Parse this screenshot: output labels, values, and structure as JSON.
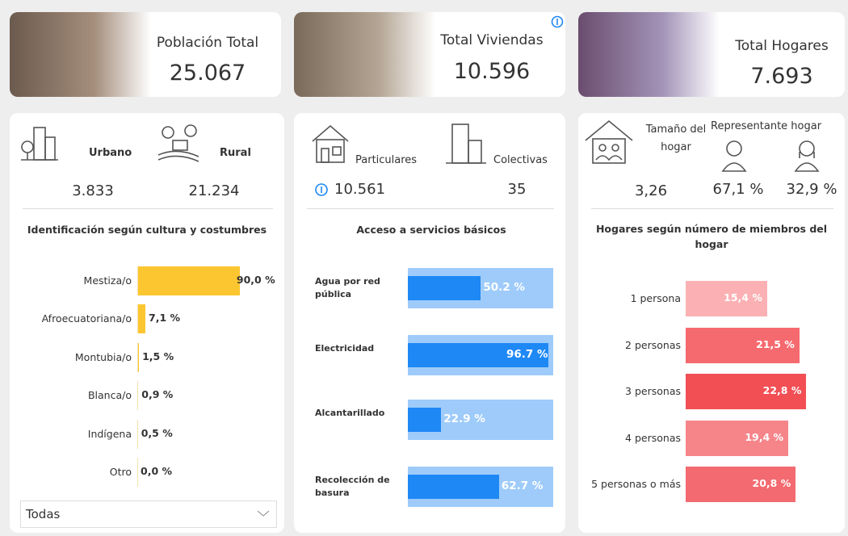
{
  "cards": [
    {
      "title": "Población Total",
      "value": "25.067"
    },
    {
      "title": "Total Viviendas",
      "value": "10.596"
    },
    {
      "title": "Total Hogares",
      "value": "7.693"
    }
  ],
  "panels": [
    {
      "stats": [
        {
          "label": "Urbano",
          "value": "3.833"
        },
        {
          "label": "Rural",
          "value": "21.234"
        }
      ],
      "chart_data": {
        "type": "bar",
        "title": "Identificación según cultura y costumbres",
        "categories": [
          "Mestiza/o",
          "Afroecuatoriana/o",
          "Montubia/o",
          "Blanca/o",
          "Indígena",
          "Otro"
        ],
        "values": [
          90.0,
          7.1,
          1.5,
          0.9,
          0.5,
          0.0
        ],
        "value_labels": [
          "90,0 %",
          "7,1 %",
          "1,5 %",
          "0,9 %",
          "0,5 %",
          "0,0 %"
        ],
        "color": "#fcc630"
      },
      "filter": "Todas"
    },
    {
      "stats": [
        {
          "label": "Particulares",
          "value": "10.561"
        },
        {
          "label": "Colectivas",
          "value": "35"
        }
      ],
      "chart_data": {
        "type": "bar",
        "title": "Acceso a servicios básicos",
        "categories": [
          "Agua por red pública",
          "Electricidad",
          "Alcantarillado",
          "Recolección de basura"
        ],
        "values": [
          50.2,
          96.7,
          22.9,
          62.7
        ],
        "value_labels": [
          "50.2 %",
          "96.7 %",
          "22.9 %",
          "62.7 %"
        ],
        "color": "#1e88f5",
        "track_color": "#9ecbfa"
      }
    },
    {
      "stats": [
        {
          "label": "Tamaño del hogar",
          "value": "3,26"
        }
      ],
      "representative": {
        "title": "Representante hogar",
        "values": [
          "67,1 %",
          "32,9 %"
        ]
      },
      "chart_data": {
        "type": "bar",
        "title": "Hogares según número de miembros del hogar",
        "categories": [
          "1 persona",
          "2 personas",
          "3 personas",
          "4 personas",
          "5 personas o más"
        ],
        "values": [
          15.4,
          21.5,
          22.8,
          19.4,
          20.8
        ],
        "value_labels": [
          "15,4 %",
          "21,5 %",
          "22,8 %",
          "19,4 %",
          "20,8 %"
        ],
        "colors": [
          "#fbb1b4",
          "#f56a6f",
          "#f24f55",
          "#f6858a",
          "#f36a70"
        ]
      }
    }
  ]
}
